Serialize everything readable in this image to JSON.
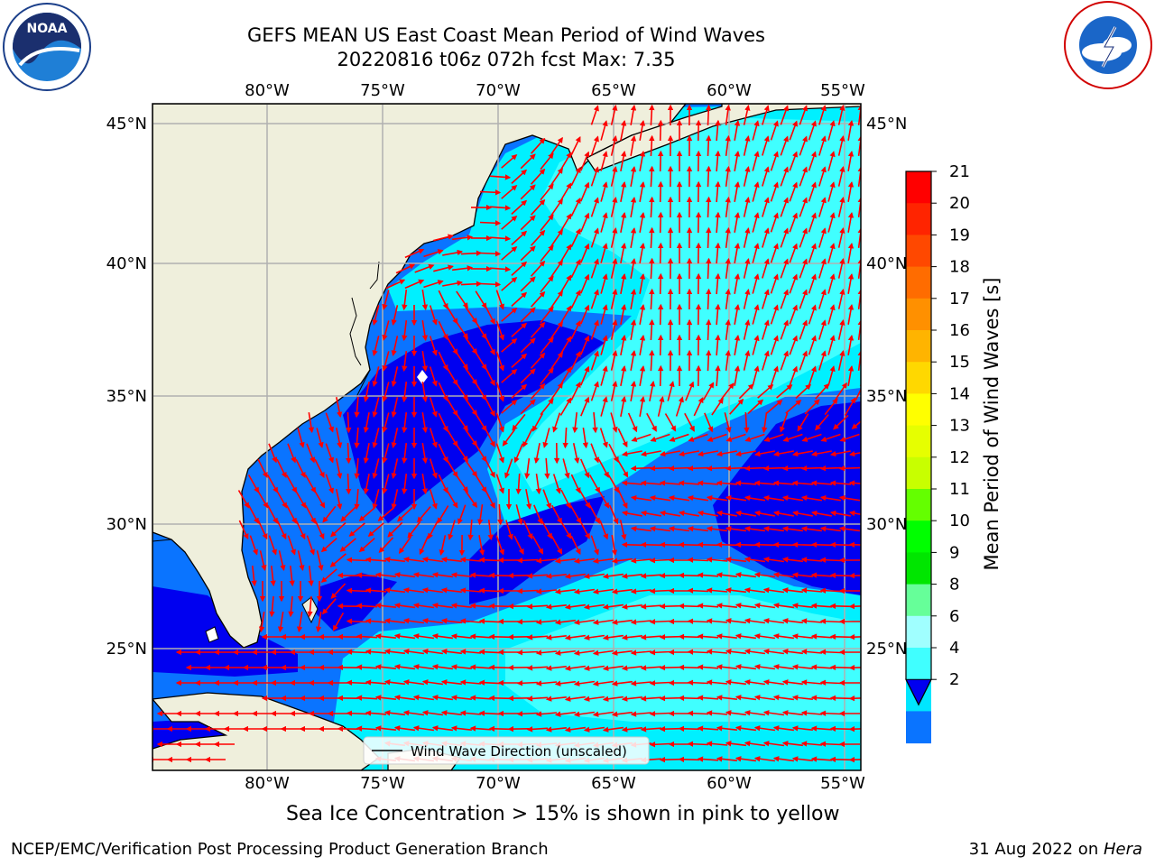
{
  "header": {
    "title_line1": "GEFS MEAN US East Coast Mean Period of Wind Waves",
    "title_line2": "20220816 t06z 072h fcst   Max: 7.35"
  },
  "logos": {
    "noaa_text": "NOAA",
    "noaa_ring_text": "NATIONAL OCEANIC AND ATMOSPHERIC ADMINISTRATION · U.S. DEPARTMENT OF COMMERCE",
    "nws_ring_text": "NATIONAL WEATHER SERVICE"
  },
  "map": {
    "lon_ticks": [
      "80°W",
      "75°W",
      "70°W",
      "65°W",
      "60°W",
      "55°W"
    ],
    "lat_ticks": [
      "45°N",
      "40°N",
      "35°N",
      "30°N",
      "25°N"
    ],
    "legend_label": "Wind Wave Direction (unscaled)",
    "colors": {
      "land": "#efefdc",
      "coast": "#000000",
      "grid": "#b0b0b0",
      "arrow": "#ff0000",
      "period_2_4": "#0a74ff",
      "period_0_2": "#0000f0",
      "period_4_6": "#00f0ff",
      "period_6_8": "#40ffff"
    }
  },
  "colorbar": {
    "label": "Mean Period of Wind Waves [s]",
    "ticks": [
      "21",
      "20",
      "19",
      "18",
      "17",
      "16",
      "15",
      "14",
      "13",
      "12",
      "11",
      "10",
      "9",
      "8",
      "6",
      "4",
      "2"
    ],
    "colors": [
      "#ff0000",
      "#ff2400",
      "#ff4800",
      "#ff6c00",
      "#ff9000",
      "#ffb400",
      "#ffd800",
      "#ffff00",
      "#e6ff00",
      "#c8ff00",
      "#64ff00",
      "#00ff00",
      "#00e600",
      "#66ff99",
      "#a0ffff",
      "#40ffff",
      "#00e6ff",
      "#0a74ff"
    ],
    "extend_color": "#0000f0"
  },
  "notes": {
    "sea_ice": "Sea Ice Concentration > 15% is shown in pink to yellow"
  },
  "footer": {
    "left": "NCEP/EMC/Verification Post Processing Product Generation Branch",
    "date": "31 Aug 2022 on ",
    "host": "Hera"
  }
}
